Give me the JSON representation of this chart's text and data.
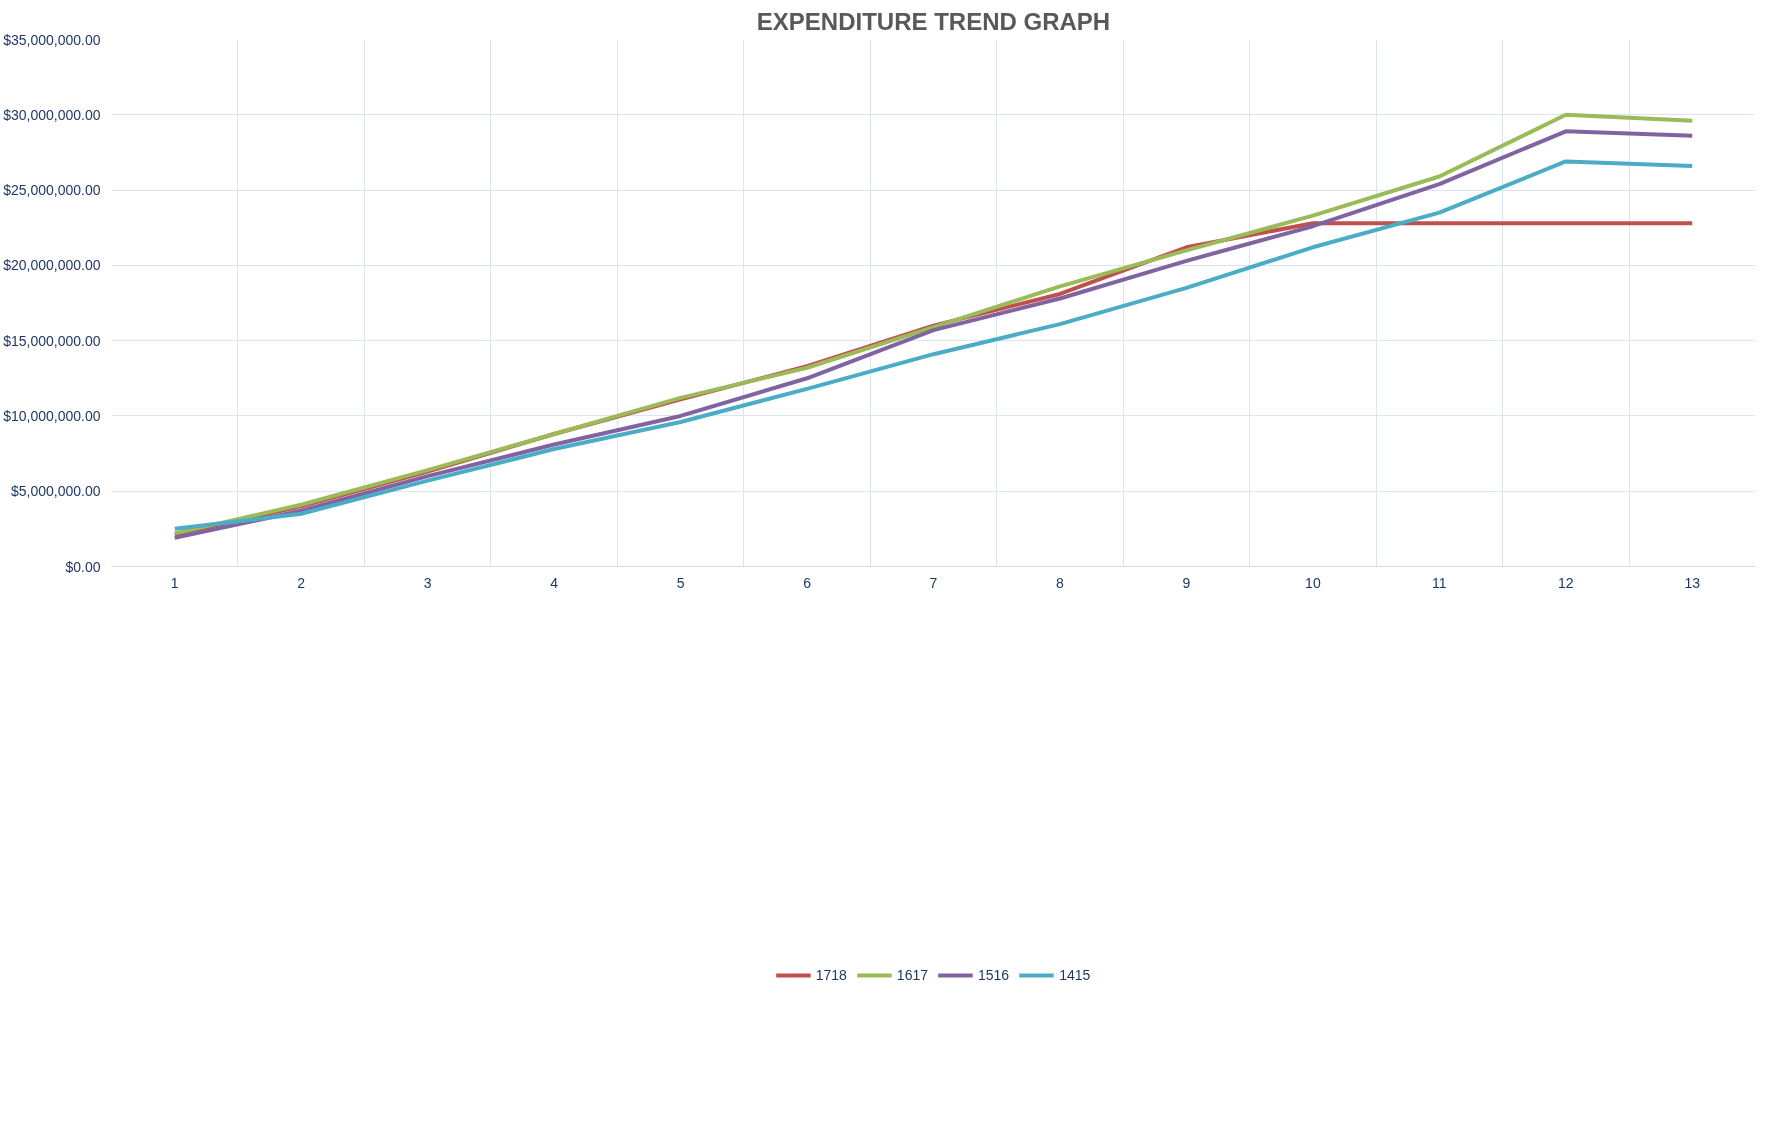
{
  "chart_data": {
    "type": "line",
    "title": "EXPENDITURE TREND GRAPH",
    "categories": [
      "1",
      "2",
      "3",
      "4",
      "5",
      "6",
      "7",
      "8",
      "9",
      "10",
      "11",
      "12",
      "13"
    ],
    "series": [
      {
        "name": "1718",
        "color": "#c0504d",
        "values": [
          2100000,
          4000000,
          6300000,
          8800000,
          11100000,
          13300000,
          16000000,
          18100000,
          21200000,
          22800000,
          22800000,
          22800000,
          22800000
        ]
      },
      {
        "name": "1617",
        "color": "#9bbb59",
        "values": [
          2200000,
          4100000,
          6400000,
          8800000,
          11200000,
          13200000,
          15900000,
          18600000,
          21000000,
          23300000,
          25900000,
          30000000,
          29600000
        ]
      },
      {
        "name": "1516",
        "color": "#8064a2",
        "values": [
          1900000,
          3700000,
          6000000,
          8100000,
          10000000,
          12500000,
          15700000,
          17800000,
          20300000,
          22600000,
          25400000,
          28900000,
          28600000
        ]
      },
      {
        "name": "1415",
        "color": "#4bacc6",
        "values": [
          2500000,
          3500000,
          5700000,
          7800000,
          9600000,
          11800000,
          14100000,
          16100000,
          18500000,
          21200000,
          23500000,
          26900000,
          26600000
        ]
      }
    ],
    "ylim": [
      0,
      35000000
    ],
    "yticks": [
      {
        "value": 0,
        "label": "$0.00"
      },
      {
        "value": 5000000,
        "label": "$5,000,000.00"
      },
      {
        "value": 10000000,
        "label": "$10,000,000.00"
      },
      {
        "value": 15000000,
        "label": "$15,000,000.00"
      },
      {
        "value": 20000000,
        "label": "$20,000,000.00"
      },
      {
        "value": 25000000,
        "label": "$25,000,000.00"
      },
      {
        "value": 30000000,
        "label": "$30,000,000.00"
      },
      {
        "value": 35000000,
        "label": "$35,000,000.00"
      }
    ],
    "grid": true,
    "legend": "bottom",
    "marker": "none",
    "line_style": "solid"
  }
}
